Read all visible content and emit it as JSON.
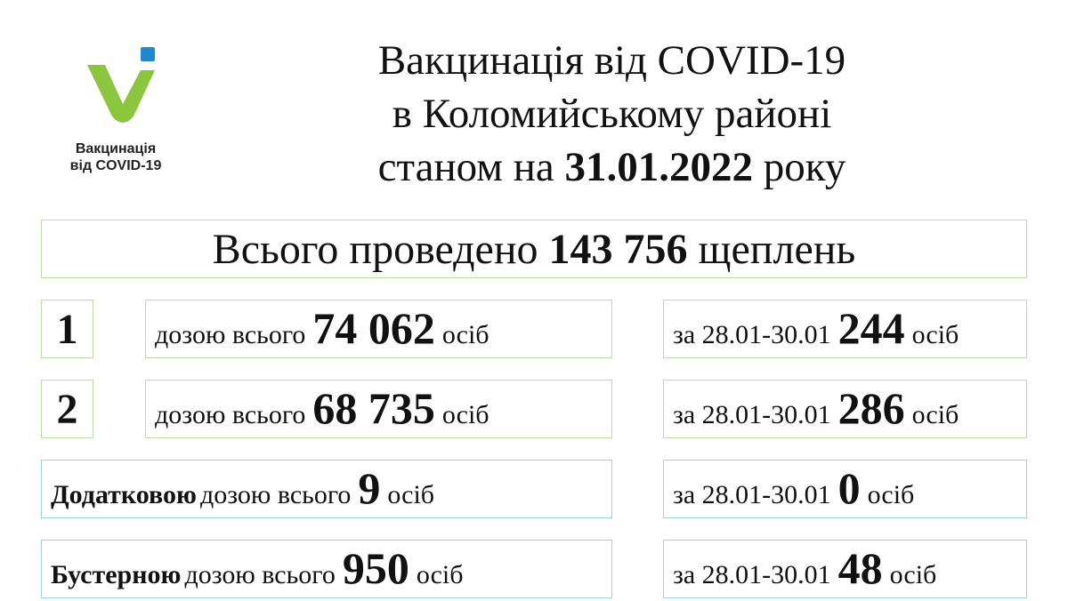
{
  "logo": {
    "line1": "Вакцинація",
    "line2": "від COVID-19",
    "colors": {
      "green": "#8cc63f",
      "blue": "#1e88d0"
    }
  },
  "title": {
    "line1": "Вакцинація від COVID-19",
    "line2": "в Коломийському районі",
    "line3_prefix": "станом на",
    "date": "31.01.2022",
    "line3_suffix": "року"
  },
  "total": {
    "prefix": "Всього проведено",
    "value": "143 756",
    "suffix": "щеплень"
  },
  "rows": [
    {
      "label": "1",
      "text": "дозою всього",
      "value": "74 062",
      "unit": "осіб",
      "period": "за 28.01-30.01",
      "period_value": "244",
      "period_unit": "осіб"
    },
    {
      "label": "2",
      "text": "дозою всього",
      "value": "68 735",
      "unit": "осіб",
      "period": "за 28.01-30.01",
      "period_value": "286",
      "period_unit": "осіб"
    },
    {
      "label": "Додатковою",
      "text": "дозою всього",
      "value": "9",
      "unit": "осіб",
      "period": "за 28.01-30.01",
      "period_value": "0",
      "period_unit": "осіб"
    },
    {
      "label": "Бустерною",
      "text": "дозою всього",
      "value": "950",
      "unit": "осіб",
      "period": "за 28.01-30.01",
      "period_value": "48",
      "period_unit": "осіб"
    }
  ]
}
